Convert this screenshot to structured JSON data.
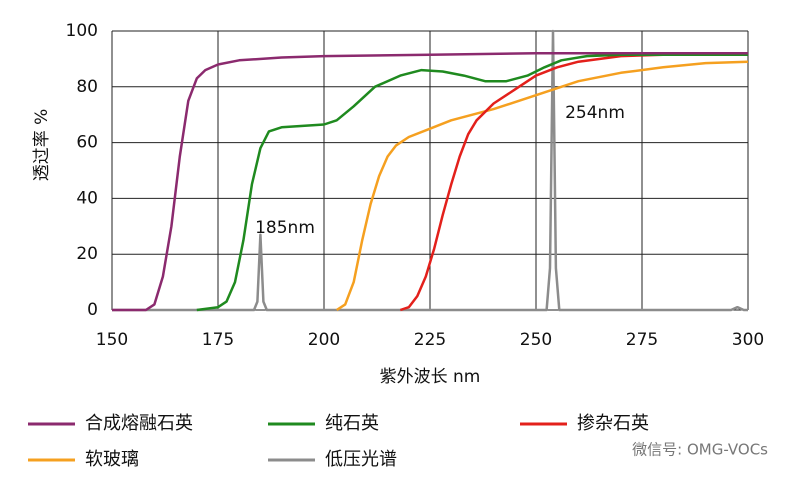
{
  "chart_data": {
    "type": "line",
    "y_label": "透过率 %",
    "x_label": "紫外波长 nm",
    "annotations": [
      "185nm",
      "254nm"
    ],
    "watermark": "微信号: OMG-VOCs",
    "xlim": [
      150,
      300
    ],
    "xticks": [
      150,
      175,
      200,
      225,
      250,
      275,
      300
    ],
    "ylim": [
      0,
      100
    ],
    "yticks": [
      0,
      20,
      40,
      60,
      80,
      100
    ],
    "grid": true,
    "series": [
      {
        "name": "合成熔融石英",
        "color": "#8b2a6e",
        "x": [
          150,
          158,
          160,
          162,
          164,
          166,
          168,
          170,
          172,
          175,
          180,
          190,
          200,
          225,
          250,
          275,
          300
        ],
        "values": [
          0,
          0,
          2,
          12,
          30,
          55,
          75,
          83,
          86,
          88,
          89.5,
          90.5,
          91,
          91.5,
          92,
          92,
          92
        ]
      },
      {
        "name": "纯石英",
        "color": "#1f8a1f",
        "x": [
          170,
          175,
          177,
          179,
          181,
          183,
          185,
          187,
          190,
          195,
          200,
          203,
          207,
          212,
          218,
          223,
          228,
          233,
          238,
          243,
          248,
          252,
          256,
          262,
          270,
          300
        ],
        "values": [
          0,
          1,
          3,
          10,
          25,
          45,
          58,
          64,
          65.5,
          66,
          66.5,
          68,
          73,
          80,
          84,
          86,
          85.5,
          84,
          82,
          82,
          84,
          87,
          89.5,
          91,
          91.5,
          91.5
        ]
      },
      {
        "name": "掺杂石英",
        "color": "#e3201b",
        "x": [
          218,
          220,
          222,
          224,
          226,
          228,
          230,
          232,
          234,
          236,
          240,
          245,
          250,
          255,
          260,
          270,
          280,
          300
        ],
        "values": [
          0,
          1,
          5,
          12,
          22,
          34,
          45,
          55,
          63,
          68,
          74,
          79,
          84,
          87,
          89,
          91,
          91.5,
          92
        ]
      },
      {
        "name": "软玻璃",
        "color": "#f5a020",
        "x": [
          203,
          205,
          207,
          209,
          211,
          213,
          215,
          217,
          220,
          225,
          230,
          240,
          250,
          260,
          270,
          280,
          290,
          300
        ],
        "values": [
          0,
          2,
          10,
          25,
          38,
          48,
          55,
          59,
          62,
          65,
          68,
          72,
          77,
          82,
          85,
          87,
          88.5,
          89
        ]
      },
      {
        "name": "低压光谱",
        "color": "#8c8c8c",
        "x": [
          150,
          183.5,
          184.3,
          185,
          185.7,
          186.5,
          252.5,
          253.3,
          254,
          254.7,
          255.5,
          296,
          297.5,
          299,
          300
        ],
        "values": [
          0,
          0,
          3,
          27,
          3,
          0,
          0,
          15,
          100,
          15,
          0,
          0,
          1,
          0,
          0
        ]
      }
    ]
  }
}
